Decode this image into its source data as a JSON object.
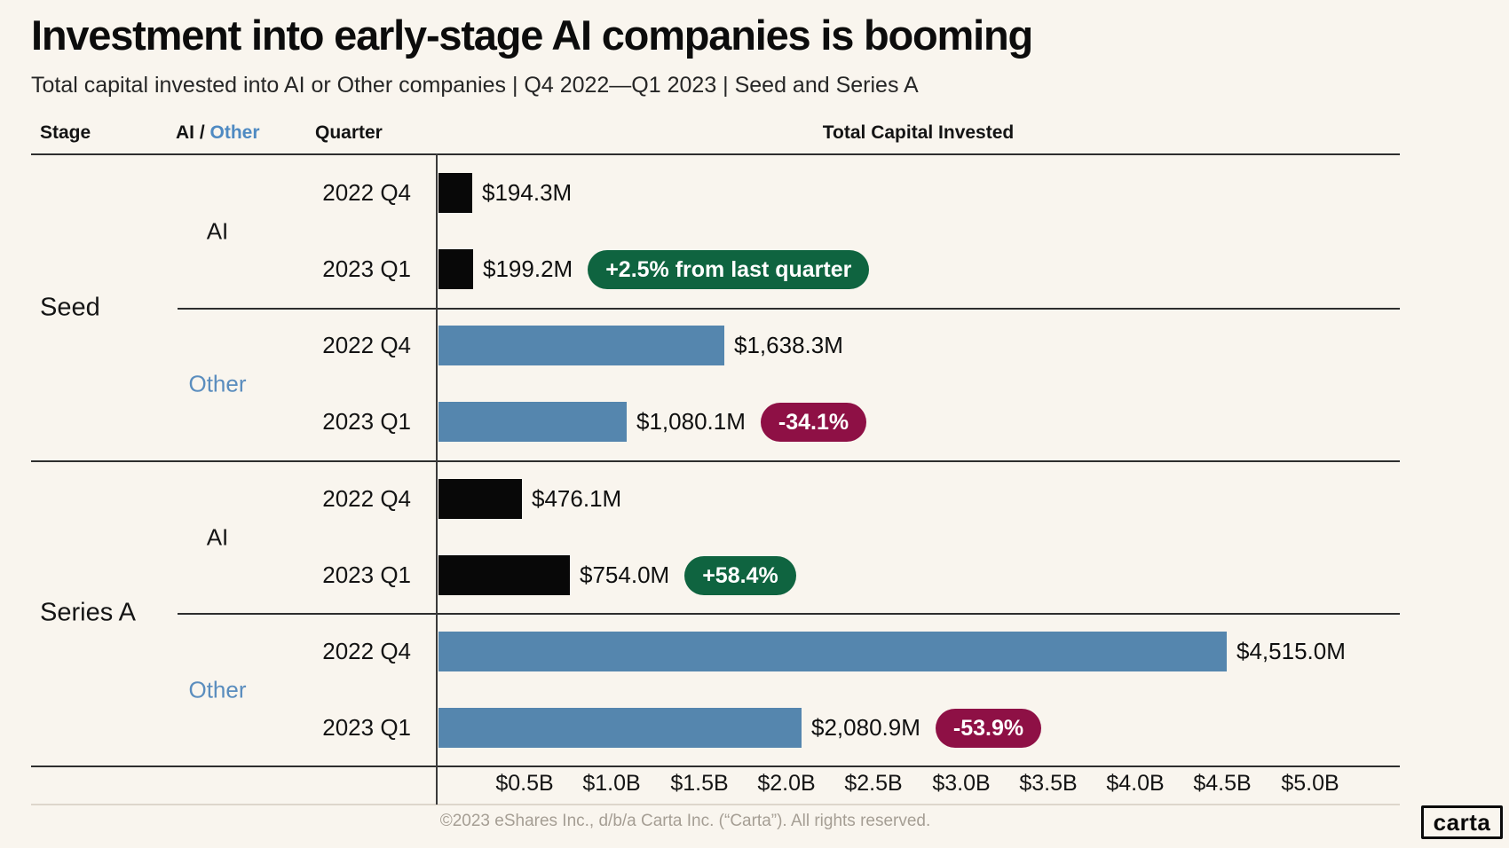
{
  "title": "Investment into early-stage AI companies is booming",
  "subtitle": "Total capital invested into AI or Other companies |  Q4 2022—Q1 2023  | Seed and Series A",
  "columns": {
    "stage": "Stage",
    "ai": "AI",
    "separator": " / ",
    "other": "Other",
    "quarter": "Quarter",
    "capital": "Total Capital Invested"
  },
  "colors": {
    "background": "#f9f5ee",
    "bar_ai": "#080808",
    "bar_other": "#5586ae",
    "badge_up": "#0f6440",
    "badge_down": "#8e1045",
    "blue_label": "#5a8dbe"
  },
  "side_labels": {
    "stage_seed": "Seed",
    "stage_series_a": "Series A",
    "seg_seed_ai": "AI",
    "seg_seed_other": "Other",
    "seg_series_ai": "AI",
    "seg_series_other": "Other"
  },
  "chart_data": {
    "type": "bar",
    "orientation": "horizontal",
    "title": "Investment into early-stage AI companies is booming",
    "subtitle": "Total capital invested into AI or Other companies | Q4 2022—Q1 2023 | Seed and Series A",
    "value_axis_label": "Total Capital Invested",
    "unit": "USD millions",
    "x_axis": {
      "range_busd": [
        0,
        5.0
      ],
      "tick_step_busd": 0.5,
      "ticks": [
        "$0.5B",
        "$1.0B",
        "$1.5B",
        "$2.0B",
        "$2.5B",
        "$3.0B",
        "$3.5B",
        "$4.0B",
        "$4.5B",
        "$5.0B"
      ]
    },
    "rows": [
      {
        "stage": "Seed",
        "segment": "AI",
        "quarter": "2022 Q4",
        "value_musd": 194.3,
        "label": "$194.3M",
        "badge": null
      },
      {
        "stage": "Seed",
        "segment": "AI",
        "quarter": "2023 Q1",
        "value_musd": 199.2,
        "label": "$199.2M",
        "badge": {
          "text": "+2.5% from last quarter",
          "direction": "up"
        }
      },
      {
        "stage": "Seed",
        "segment": "Other",
        "quarter": "2022 Q4",
        "value_musd": 1638.3,
        "label": "$1,638.3M",
        "badge": null
      },
      {
        "stage": "Seed",
        "segment": "Other",
        "quarter": "2023 Q1",
        "value_musd": 1080.1,
        "label": "$1,080.1M",
        "badge": {
          "text": "-34.1%",
          "direction": "down"
        }
      },
      {
        "stage": "Series A",
        "segment": "AI",
        "quarter": "2022 Q4",
        "value_musd": 476.1,
        "label": "$476.1M",
        "badge": null
      },
      {
        "stage": "Series A",
        "segment": "AI",
        "quarter": "2023 Q1",
        "value_musd": 754.0,
        "label": "$754.0M",
        "badge": {
          "text": "+58.4%",
          "direction": "up"
        }
      },
      {
        "stage": "Series A",
        "segment": "Other",
        "quarter": "2022 Q4",
        "value_musd": 4515.0,
        "label": "$4,515.0M",
        "badge": null
      },
      {
        "stage": "Series A",
        "segment": "Other",
        "quarter": "2023 Q1",
        "value_musd": 2080.9,
        "label": "$2,080.9M",
        "badge": {
          "text": "-53.9%",
          "direction": "down"
        }
      }
    ]
  },
  "footer": {
    "copyright": "©2023 eShares Inc., d/b/a Carta Inc. (“Carta”). All rights reserved.",
    "logo_text": "carta"
  }
}
